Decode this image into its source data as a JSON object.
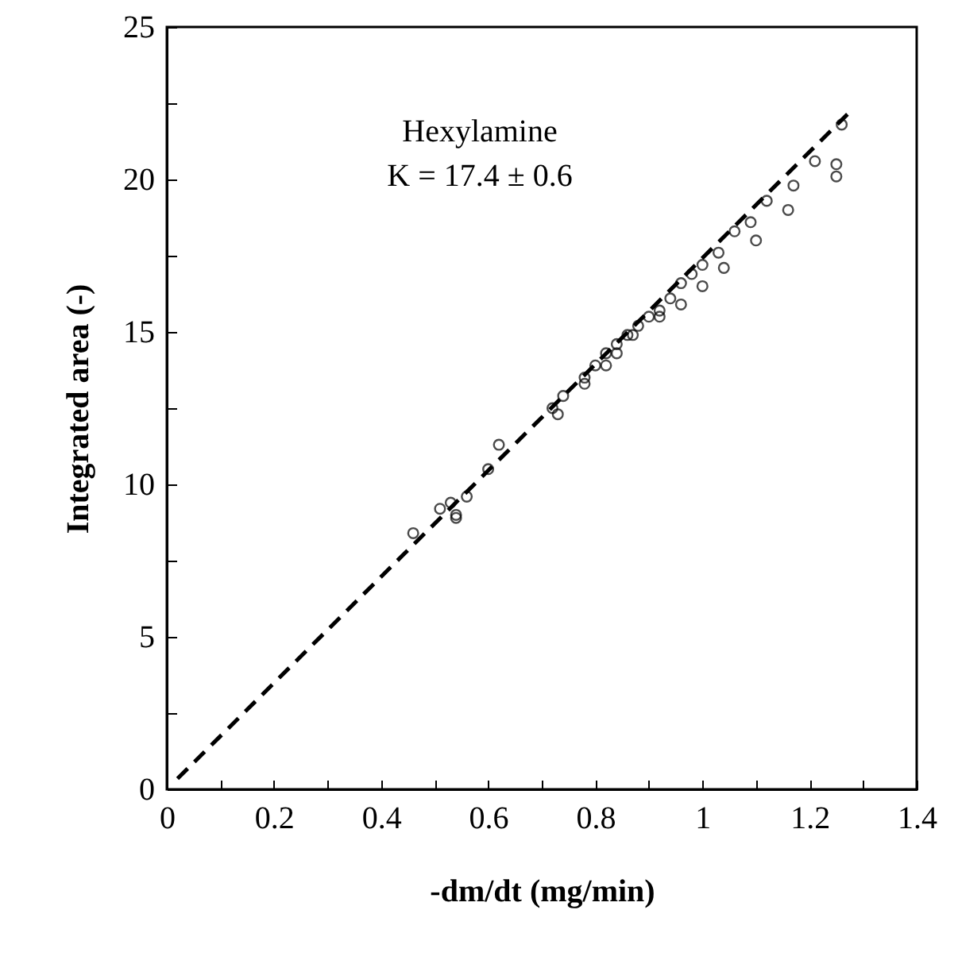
{
  "chart_data": {
    "type": "scatter",
    "xlabel": "-dm/dt (mg/min)",
    "ylabel": "Integrated area (-)",
    "annotations": [
      "Hexylamine",
      "K = 17.4 ± 0.6"
    ],
    "xlim": [
      0,
      1.4
    ],
    "xticks": [
      0,
      {
        "value": 0.1,
        "label": null
      },
      0.2,
      {
        "value": 0.3,
        "label": null
      },
      0.4,
      {
        "value": 0.5,
        "label": null
      },
      0.6,
      {
        "value": 0.7,
        "label": null
      },
      0.8,
      {
        "value": 0.9,
        "label": null
      },
      1,
      {
        "value": 1.1,
        "label": null
      },
      1.2,
      {
        "value": 1.3,
        "label": null
      },
      1.4
    ],
    "ylim": [
      0,
      25
    ],
    "yticks": [
      0,
      {
        "value": 2.5,
        "label": null
      },
      5,
      {
        "value": 7.5,
        "label": null
      },
      10,
      {
        "value": 12.5,
        "label": null
      },
      15,
      {
        "value": 17.5,
        "label": null
      },
      20,
      {
        "value": 22.5,
        "label": null
      },
      25
    ],
    "grid": false,
    "marker": "circle",
    "series": [
      {
        "color": "#000000",
        "x": [
          0.46,
          0.51,
          0.53,
          0.54,
          0.56,
          0.6,
          0.62,
          0.72,
          0.74,
          0.78,
          0.8,
          0.82,
          0.84,
          0.86,
          0.88,
          0.9,
          0.92,
          0.94,
          0.96,
          0.98,
          1.0,
          1.03,
          1.06,
          1.09,
          1.12,
          1.17,
          1.21,
          1.26,
          1.25,
          1.25,
          1.16,
          1.1,
          1.04,
          1.0,
          0.96,
          0.92,
          0.87,
          0.84,
          0.82,
          0.78,
          0.73,
          0.54
        ],
        "values": [
          8.4,
          9.2,
          9.4,
          9.0,
          9.6,
          10.5,
          11.3,
          12.5,
          12.9,
          13.5,
          13.9,
          14.3,
          14.6,
          14.9,
          15.2,
          15.5,
          15.7,
          16.1,
          16.6,
          16.9,
          17.2,
          17.6,
          18.3,
          18.6,
          19.3,
          19.8,
          20.6,
          21.8,
          20.1,
          20.5,
          19.0,
          18.0,
          17.1,
          16.5,
          15.9,
          15.5,
          14.9,
          14.3,
          13.9,
          13.3,
          12.3,
          8.9
        ]
      },
      {
        "type": "line",
        "color": "#000000",
        "line_style": "dashed",
        "marker": "none",
        "x": [
          0.02,
          1.28
        ],
        "values": [
          0.35,
          22.3
        ]
      }
    ]
  }
}
